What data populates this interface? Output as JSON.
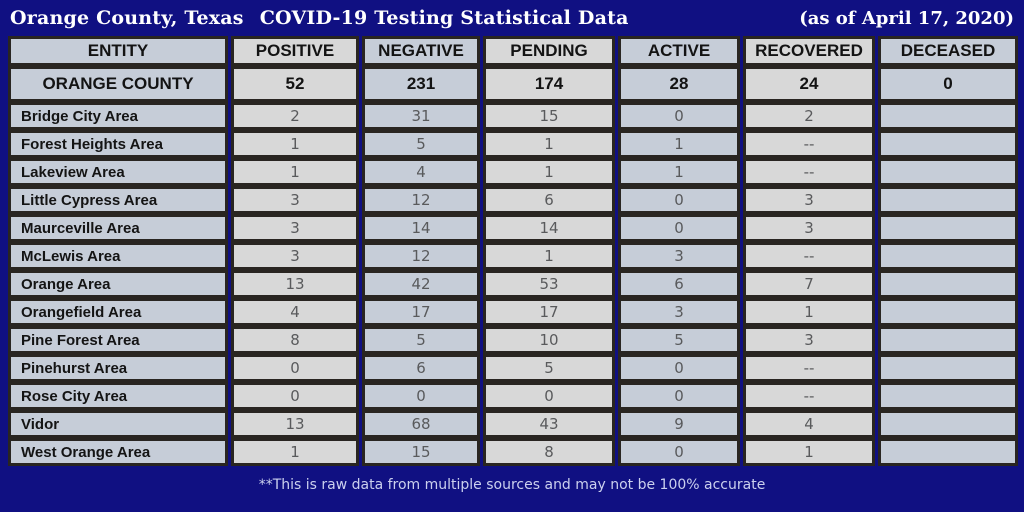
{
  "header": {
    "title_location": "Orange County, Texas",
    "title_main": "COVID-19 Testing Statistical Data",
    "date_note": "(as of April 17, 2020)"
  },
  "footer": {
    "note": "**This is raw data from multiple sources and may not be 100% accurate"
  },
  "colors": {
    "background_navy": "#101082",
    "cell_blue_gray": "#c6cdd8",
    "cell_light_gray": "#d8d8d8",
    "grid_border_black": "#292521",
    "heading_text": "#131313",
    "data_text_gray": "#595a5c",
    "title_text": "#ffffff",
    "footer_text": "#cbd0ee"
  },
  "chart_data": {
    "type": "table",
    "title": "Orange County, Texas COVID-19 Testing Statistical Data",
    "subtitle": "(as of April 17, 2020)",
    "columns": [
      "ENTITY",
      "POSITIVE",
      "NEGATIVE",
      "PENDING",
      "ACTIVE",
      "RECOVERED",
      "DECEASED"
    ],
    "summary_row": [
      "ORANGE COUNTY",
      "52",
      "231",
      "174",
      "28",
      "24",
      "0"
    ],
    "rows": [
      [
        "Bridge City Area",
        "2",
        "31",
        "15",
        "0",
        "2",
        ""
      ],
      [
        "Forest Heights Area",
        "1",
        "5",
        "1",
        "1",
        "--",
        ""
      ],
      [
        "Lakeview Area",
        "1",
        "4",
        "1",
        "1",
        "--",
        ""
      ],
      [
        "Little Cypress Area",
        "3",
        "12",
        "6",
        "0",
        "3",
        ""
      ],
      [
        "Maurceville Area",
        "3",
        "14",
        "14",
        "0",
        "3",
        ""
      ],
      [
        "McLewis Area",
        "3",
        "12",
        "1",
        "3",
        "--",
        ""
      ],
      [
        "Orange Area",
        "13",
        "42",
        "53",
        "6",
        "7",
        ""
      ],
      [
        "Orangefield Area",
        "4",
        "17",
        "17",
        "3",
        "1",
        ""
      ],
      [
        "Pine Forest Area",
        "8",
        "5",
        "10",
        "5",
        "3",
        ""
      ],
      [
        "Pinehurst Area",
        "0",
        "6",
        "5",
        "0",
        "--",
        ""
      ],
      [
        "Rose City Area",
        "0",
        "0",
        "0",
        "0",
        "--",
        ""
      ],
      [
        "Vidor",
        "13",
        "68",
        "43",
        "9",
        "4",
        ""
      ],
      [
        "West Orange Area",
        "1",
        "15",
        "8",
        "0",
        "1",
        ""
      ]
    ],
    "footnote": "**This is raw data from multiple sources and may not be 100% accurate"
  }
}
